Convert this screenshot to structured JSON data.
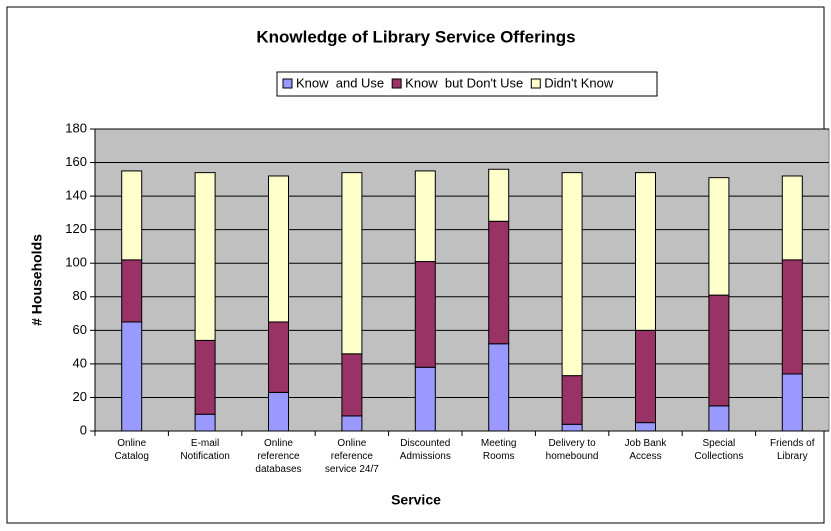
{
  "chart_data": {
    "type": "stacked_bar",
    "title": "Knowledge of Library Service Offerings",
    "x_label": "Service",
    "y_label": "# Households",
    "categories": [
      "Online\nCatalog",
      "E-mail\nNotification",
      "Online\nreference\ndatabases",
      "Online\nreference\nservice 24/7",
      "Discounted\nAdmissions",
      "Meeting\nRooms",
      "Delivery to\nhomebound",
      "Job Bank\nAccess",
      "Special\nCollections",
      "Friends of\nLibrary"
    ],
    "series": [
      {
        "name": "Know  and Use",
        "color": "#9999ff",
        "values": [
          65,
          10,
          23,
          9,
          38,
          52,
          4,
          5,
          15,
          34
        ]
      },
      {
        "name": "Know  but Don't Use",
        "color": "#993366",
        "values": [
          37,
          44,
          42,
          37,
          63,
          73,
          29,
          55,
          66,
          68
        ]
      },
      {
        "name": "Didn't Know",
        "color": "#ffffcc",
        "values": [
          53,
          100,
          87,
          108,
          54,
          31,
          121,
          94,
          70,
          50
        ]
      }
    ],
    "ylim": [
      0,
      180
    ],
    "yticks": [
      0,
      20,
      40,
      60,
      80,
      100,
      120,
      140,
      160,
      180
    ],
    "grid": true,
    "legend": "top"
  }
}
